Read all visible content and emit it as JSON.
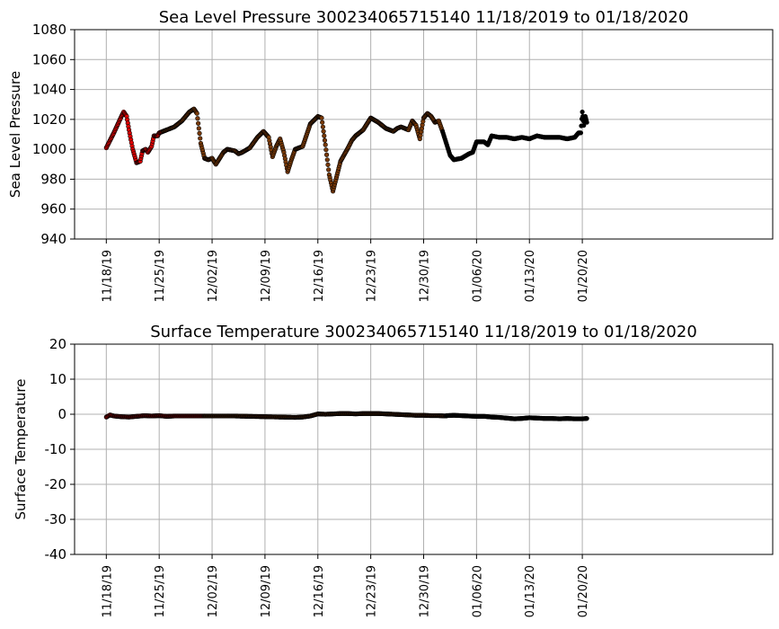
{
  "chart_data": [
    {
      "type": "scatter",
      "title": "Sea Level Pressure 300234065715140  11/18/2019 to 01/18/2020",
      "xlabel": "",
      "ylabel": "Sea Level Pressure",
      "ylim": [
        940,
        1080
      ],
      "yticks": [
        940,
        960,
        980,
        1000,
        1020,
        1040,
        1060,
        1080
      ],
      "xlim_days": [
        -4.2,
        88.2
      ],
      "xticks": [
        {
          "day": 0,
          "label": "11/18/19"
        },
        {
          "day": 7,
          "label": "11/25/19"
        },
        {
          "day": 14,
          "label": "12/02/19"
        },
        {
          "day": 21,
          "label": "12/09/19"
        },
        {
          "day": 28,
          "label": "12/16/19"
        },
        {
          "day": 35,
          "label": "12/23/19"
        },
        {
          "day": 42,
          "label": "12/30/19"
        },
        {
          "day": 49,
          "label": "01/06/20"
        },
        {
          "day": 56,
          "label": "01/13/20"
        },
        {
          "day": 63,
          "label": "01/20/20"
        }
      ],
      "grid": true,
      "series": [
        {
          "name": "segment-1",
          "color": "#e00000",
          "x": [
            0,
            1,
            2,
            2.3,
            2.7,
            3,
            3.5,
            4,
            4.5,
            4.8,
            5.2,
            5.5,
            6,
            6.3,
            6.8,
            7,
            7.5
          ],
          "y": [
            1001,
            1011,
            1022,
            1025,
            1022,
            1013,
            1000,
            991,
            992,
            999,
            1000,
            998,
            1002,
            1009,
            1009,
            1011,
            1012
          ]
        },
        {
          "name": "segment-2",
          "color": "#7a3a08",
          "x": [
            7.5,
            9,
            10,
            11,
            11.6,
            12,
            12.5,
            13,
            13.5,
            14,
            14.5,
            15,
            15.5,
            16,
            17,
            17.5,
            18,
            19,
            20,
            20.8,
            21.5,
            22,
            22.5,
            23,
            23.5,
            24,
            24.5,
            25,
            26,
            27,
            28,
            28.5,
            29,
            29.5,
            30,
            31,
            32,
            32.5,
            33,
            34,
            35,
            36,
            37,
            38,
            38.5,
            39,
            40,
            40.5,
            41,
            41.5,
            42,
            42.5,
            43,
            43.5,
            44,
            44.5
          ],
          "y": [
            1012,
            1015,
            1019,
            1025,
            1027,
            1024,
            1004,
            994,
            993,
            994,
            990,
            994,
            998,
            1000,
            999,
            997,
            998,
            1001,
            1008,
            1012,
            1008,
            995,
            1002,
            1007,
            998,
            985,
            993,
            1000,
            1002,
            1017,
            1022,
            1021,
            1003,
            983,
            972,
            992,
            1001,
            1006,
            1009,
            1013,
            1021,
            1018,
            1014,
            1012,
            1014,
            1015,
            1013,
            1019,
            1016,
            1007,
            1021,
            1024,
            1022,
            1018,
            1019,
            1012
          ]
        },
        {
          "name": "segment-3",
          "color": "#000000",
          "x": [
            44.5,
            45,
            45.5,
            46,
            47,
            48,
            48.5,
            49,
            50,
            50.5,
            51,
            52,
            53,
            54,
            55,
            56,
            57,
            58,
            59,
            60,
            61,
            62,
            62.5,
            62.8,
            63,
            63.2,
            63.4,
            63.6
          ],
          "y": [
            1012,
            1004,
            996,
            993,
            994,
            997,
            998,
            1005,
            1005,
            1003,
            1009,
            1008,
            1008,
            1007,
            1008,
            1007,
            1009,
            1008,
            1008,
            1008,
            1007,
            1008,
            1011,
            1011,
            1025,
            1016,
            1022,
            1018
          ]
        }
      ]
    },
    {
      "type": "scatter",
      "title": "Surface Temperature 300234065715140  11/18/2019 to 01/18/2020",
      "xlabel": "",
      "ylabel": "Surface Temperature",
      "ylim": [
        -40,
        20
      ],
      "yticks": [
        -40,
        -30,
        -20,
        -10,
        0,
        10,
        20
      ],
      "xlim_days": [
        -4.2,
        88.2
      ],
      "xticks": [
        {
          "day": 0,
          "label": "11/18/19"
        },
        {
          "day": 7,
          "label": "11/25/19"
        },
        {
          "day": 14,
          "label": "12/02/19"
        },
        {
          "day": 21,
          "label": "12/09/19"
        },
        {
          "day": 28,
          "label": "12/16/19"
        },
        {
          "day": 35,
          "label": "12/23/19"
        },
        {
          "day": 42,
          "label": "12/30/19"
        },
        {
          "day": 49,
          "label": "01/06/20"
        },
        {
          "day": 56,
          "label": "01/13/20"
        },
        {
          "day": 63,
          "label": "01/20/20"
        }
      ],
      "grid": true,
      "series": [
        {
          "name": "segment-1",
          "color": "#e00000",
          "x": [
            0,
            0.5,
            1,
            2,
            3,
            4,
            5,
            6,
            7,
            8,
            9,
            10,
            11,
            12,
            13
          ],
          "y": [
            -0.8,
            -0.2,
            -0.5,
            -0.7,
            -0.8,
            -0.6,
            -0.4,
            -0.5,
            -0.4,
            -0.6,
            -0.5,
            -0.5,
            -0.5,
            -0.5,
            -0.5
          ]
        },
        {
          "name": "segment-2",
          "color": "#7a3a08",
          "x": [
            13,
            15,
            17,
            19,
            21,
            23,
            25,
            26,
            27,
            28,
            29,
            30,
            31,
            32,
            33,
            34,
            35,
            36,
            37,
            38,
            39,
            40,
            41,
            42,
            43,
            44,
            45
          ],
          "y": [
            -0.5,
            -0.5,
            -0.5,
            -0.6,
            -0.7,
            -0.8,
            -0.9,
            -0.8,
            -0.5,
            0.1,
            0.0,
            0.1,
            0.2,
            0.2,
            0.1,
            0.2,
            0.2,
            0.2,
            0.1,
            0.0,
            -0.1,
            -0.2,
            -0.3,
            -0.3,
            -0.4,
            -0.4,
            -0.5
          ]
        },
        {
          "name": "segment-3",
          "color": "#000000",
          "x": [
            45,
            46,
            47,
            48,
            49,
            50,
            51,
            52,
            53,
            54,
            55,
            56,
            57,
            58,
            59,
            60,
            61,
            62,
            63,
            63.6
          ],
          "y": [
            -0.4,
            -0.3,
            -0.4,
            -0.5,
            -0.6,
            -0.6,
            -0.8,
            -0.9,
            -1.1,
            -1.3,
            -1.2,
            -1.0,
            -1.1,
            -1.2,
            -1.2,
            -1.3,
            -1.2,
            -1.3,
            -1.3,
            -1.2
          ]
        }
      ]
    }
  ]
}
